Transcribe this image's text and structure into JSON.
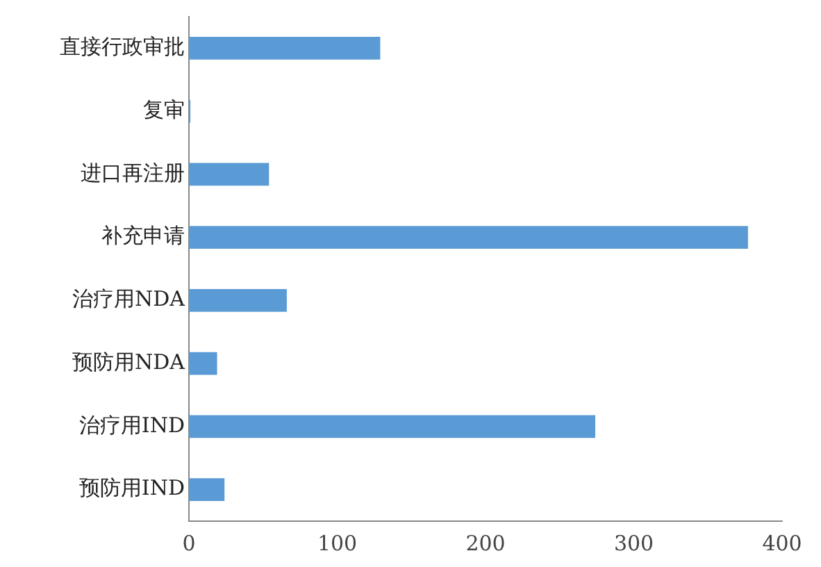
{
  "chart_data": {
    "type": "bar",
    "orientation": "horizontal",
    "categories": [
      "直接行政审批",
      "复审",
      "进口再注册",
      "补充申请",
      "治疗用NDA",
      "预防用NDA",
      "治疗用IND",
      "预防用IND"
    ],
    "values": [
      129,
      1,
      54,
      377,
      66,
      19,
      274,
      24
    ],
    "color": "#5b9bd5",
    "xlim": [
      0,
      400
    ],
    "xticks": [
      0,
      100,
      200,
      300,
      400
    ],
    "grid": false,
    "legend": false
  }
}
